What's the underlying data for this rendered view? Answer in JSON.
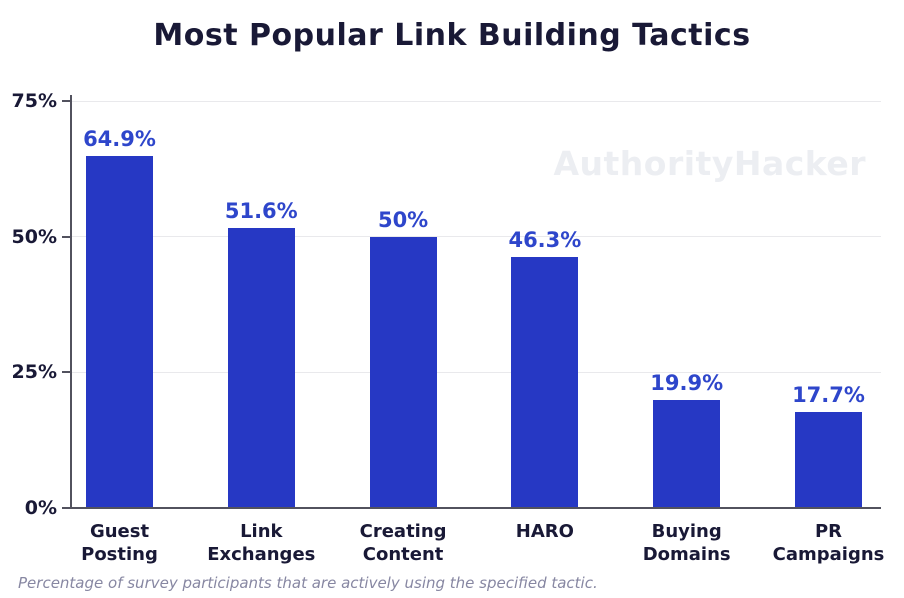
{
  "title": "Most Popular Link Building Tactics",
  "watermark": "AuthorityHacker",
  "footnote": "Percentage of survey participants that are actively using the specified tactic.",
  "colors": {
    "background": "#ffffff",
    "bar": "#2638c4",
    "value_label": "#2e46cb",
    "text_dark": "#191936",
    "gridline": "#e9e9ec",
    "axis": "#52525e",
    "watermark": "#eceef2",
    "footnote": "#8787a2"
  },
  "chart_data": {
    "type": "bar",
    "title": "Most Popular Link Building Tactics",
    "categories": [
      "Guest Posting",
      "Link Exchanges",
      "Creating Content",
      "HARO",
      "Buying Domains",
      "PR Campaigns"
    ],
    "category_lines": [
      [
        "Guest",
        "Posting"
      ],
      [
        "Link",
        "Exchanges"
      ],
      [
        "Creating",
        "Content"
      ],
      [
        "HARO"
      ],
      [
        "Buying",
        "Domains"
      ],
      [
        "PR",
        "Campaigns"
      ]
    ],
    "values": [
      64.9,
      51.6,
      50,
      46.3,
      19.9,
      17.7
    ],
    "value_labels": [
      "64.9%",
      "51.6%",
      "50%",
      "46.3%",
      "19.9%",
      "17.7%"
    ],
    "xlabel": "",
    "ylabel": "",
    "ylim": [
      0,
      75
    ],
    "yticks": [
      0,
      25,
      50,
      75
    ],
    "ytick_labels": [
      "0%",
      "25%",
      "50%",
      "75%"
    ],
    "grid": true,
    "legend": false
  }
}
